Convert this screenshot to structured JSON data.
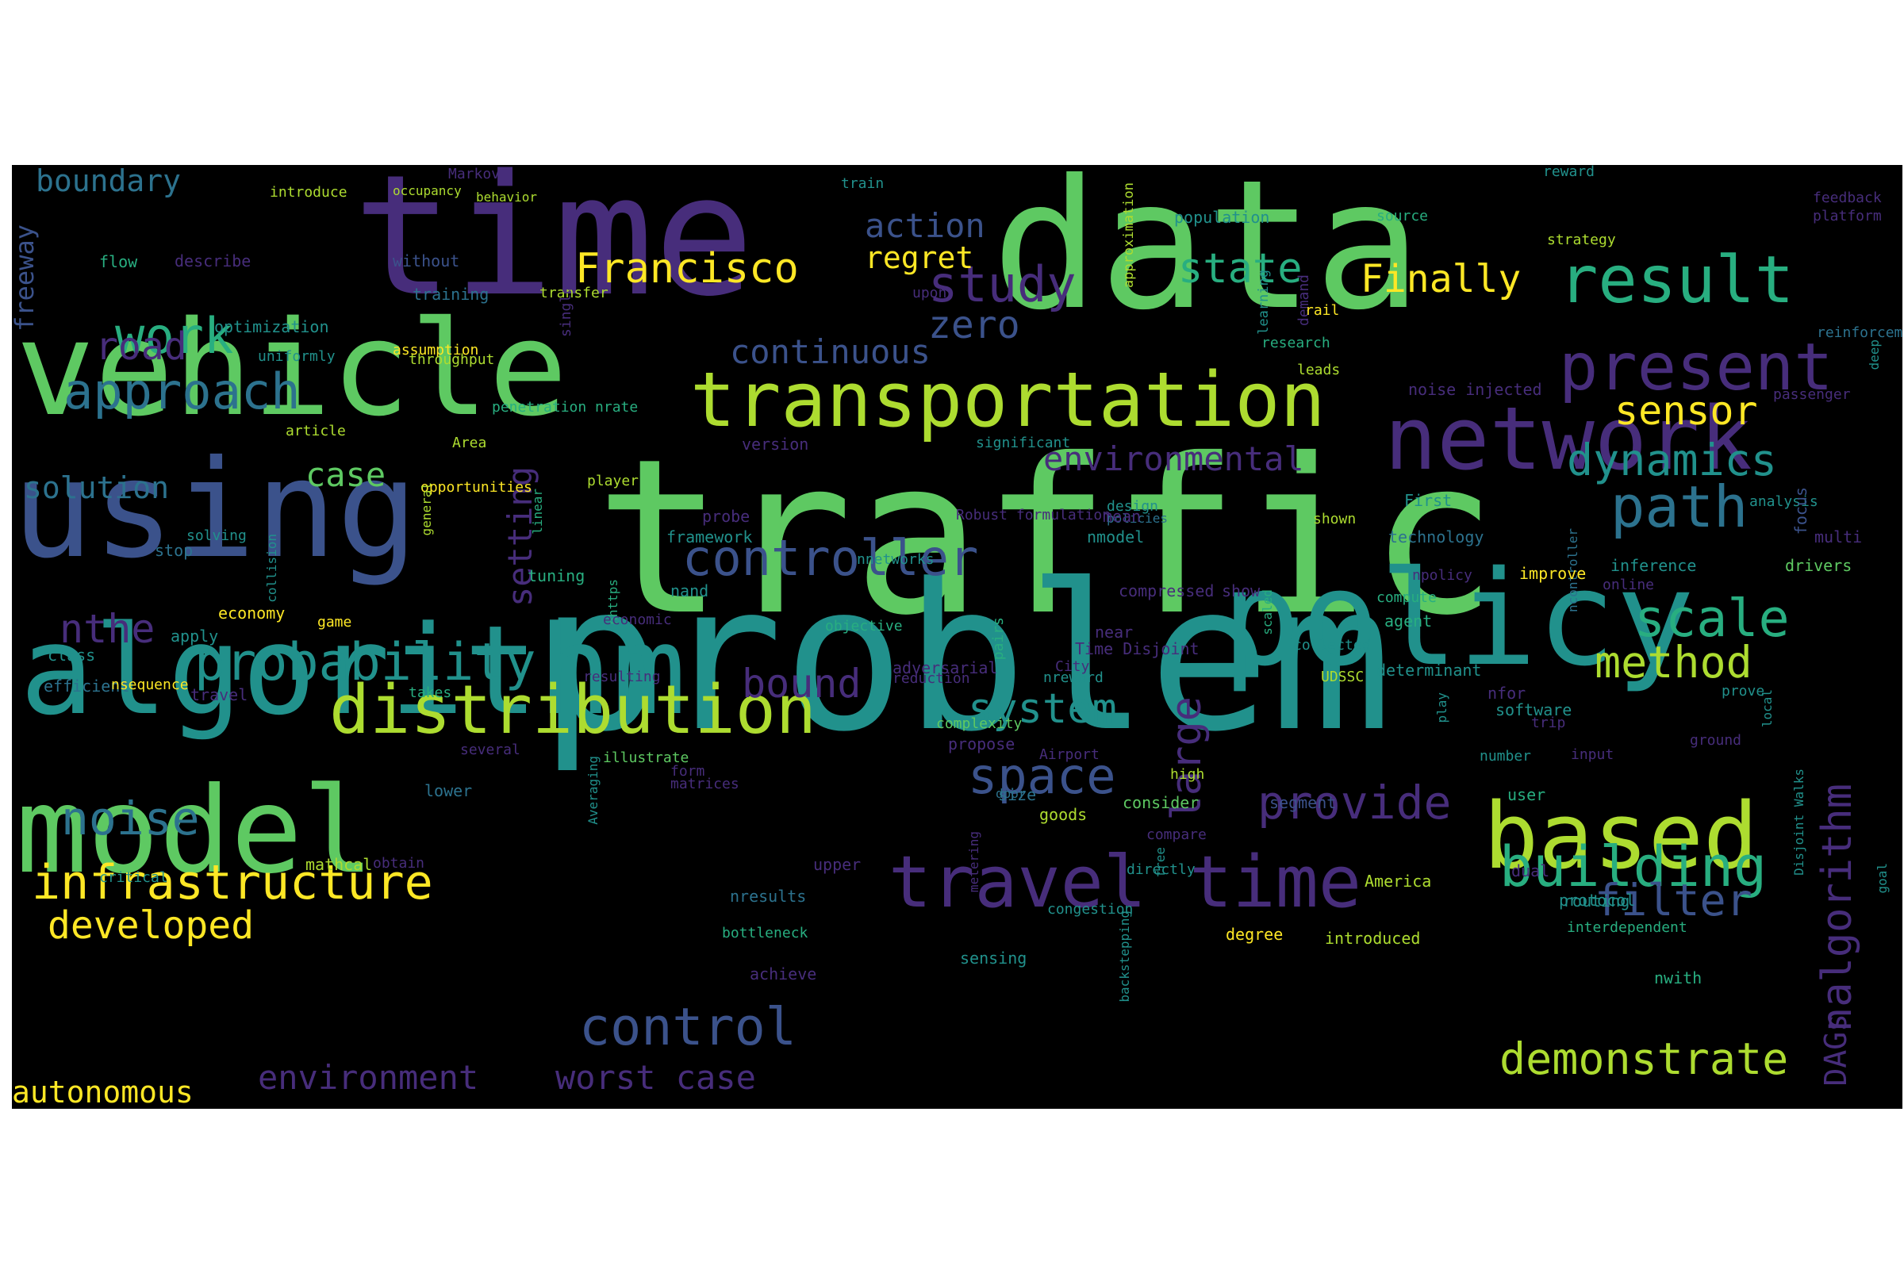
{
  "palette": [
    "#440154",
    "#472d7b",
    "#3b528b",
    "#2c728e",
    "#21918c",
    "#28ae80",
    "#5ec962",
    "#addc30",
    "#fde725"
  ],
  "words": [
    {
      "t": "time",
      "c": "#472d7b"
    },
    {
      "t": "data",
      "c": "#5ec962"
    },
    {
      "t": "traffic",
      "c": "#5ec962"
    },
    {
      "t": "problem",
      "c": "#21918c"
    },
    {
      "t": "vehicle",
      "c": "#5ec962"
    },
    {
      "t": "using",
      "c": "#3b528b"
    },
    {
      "t": "algorithm",
      "c": "#21918c"
    },
    {
      "t": "policy",
      "c": "#21918c"
    },
    {
      "t": "model",
      "c": "#5ec962"
    },
    {
      "t": "network",
      "c": "#472d7b"
    },
    {
      "t": "transportation",
      "c": "#addc30"
    },
    {
      "t": "based",
      "c": "#addc30"
    },
    {
      "t": "travel time",
      "c": "#472d7b"
    },
    {
      "t": "distribution",
      "c": "#addc30"
    },
    {
      "t": "present",
      "c": "#472d7b"
    },
    {
      "t": "result",
      "c": "#28ae80"
    },
    {
      "t": "building",
      "c": "#28ae80"
    },
    {
      "t": "infrastructure",
      "c": "#fde725"
    },
    {
      "t": "approach",
      "c": "#2c728e"
    },
    {
      "t": "work",
      "c": "#28ae80"
    },
    {
      "t": "probability",
      "c": "#21918c"
    },
    {
      "t": "controller",
      "c": "#3b528b"
    },
    {
      "t": "path",
      "c": "#2c728e"
    },
    {
      "t": "scale",
      "c": "#28ae80"
    },
    {
      "t": "control",
      "c": "#3b528b"
    },
    {
      "t": "demonstrate",
      "c": "#addc30"
    },
    {
      "t": "method",
      "c": "#addc30"
    },
    {
      "t": "study",
      "c": "#472d7b"
    },
    {
      "t": "Francisco",
      "c": "#fde725"
    },
    {
      "t": "noise",
      "c": "#2c728e"
    },
    {
      "t": "space",
      "c": "#3b528b"
    },
    {
      "t": "provide",
      "c": "#472d7b"
    },
    {
      "t": "filter",
      "c": "#3b528b"
    },
    {
      "t": "dynamics",
      "c": "#21918c"
    },
    {
      "t": "state",
      "c": "#28ae80"
    },
    {
      "t": "sensor",
      "c": "#fde725"
    },
    {
      "t": "system",
      "c": "#21918c"
    },
    {
      "t": "Finally",
      "c": "#fde725"
    },
    {
      "t": "developed",
      "c": "#fde725"
    },
    {
      "t": "environment",
      "c": "#472d7b"
    },
    {
      "t": "worst case",
      "c": "#472d7b"
    },
    {
      "t": "large",
      "c": "#472d7b"
    },
    {
      "t": "nalgorithm",
      "c": "#472d7b"
    },
    {
      "t": "autonomous",
      "c": "#fde725"
    },
    {
      "t": "environmental",
      "c": "#472d7b"
    },
    {
      "t": "continuous",
      "c": "#3b528b"
    },
    {
      "t": "action",
      "c": "#3b528b"
    },
    {
      "t": "regret",
      "c": "#fde725"
    },
    {
      "t": "zero",
      "c": "#3b528b"
    },
    {
      "t": "road",
      "c": "#472d7b"
    },
    {
      "t": "nthe",
      "c": "#472d7b"
    },
    {
      "t": "case",
      "c": "#5ec962"
    },
    {
      "t": "bound",
      "c": "#472d7b"
    },
    {
      "t": "solution",
      "c": "#2c728e"
    },
    {
      "t": "boundary",
      "c": "#2c728e"
    },
    {
      "t": "setting",
      "c": "#472d7b"
    },
    {
      "t": "DAGs",
      "c": "#472d7b"
    },
    {
      "t": "freeway",
      "c": "#3b528b"
    },
    {
      "t": "Markov",
      "c": "#472d7b"
    },
    {
      "t": "introduce",
      "c": "#addc30"
    },
    {
      "t": "occupancy",
      "c": "#addc30"
    },
    {
      "t": "behavior",
      "c": "#addc30"
    },
    {
      "t": "train",
      "c": "#21918c"
    },
    {
      "t": "flow",
      "c": "#28ae80"
    },
    {
      "t": "describe",
      "c": "#472d7b"
    },
    {
      "t": "without",
      "c": "#3b528b"
    },
    {
      "t": "training",
      "c": "#2c728e"
    },
    {
      "t": "optimization",
      "c": "#21918c"
    },
    {
      "t": "uniformly",
      "c": "#21918c"
    },
    {
      "t": "assumption",
      "c": "#fde725"
    },
    {
      "t": "throughput",
      "c": "#addc30"
    },
    {
      "t": "transfer",
      "c": "#addc30"
    },
    {
      "t": "upon",
      "c": "#472d7b"
    },
    {
      "t": "single",
      "c": "#472d7b"
    },
    {
      "t": "approximation",
      "c": "#addc30"
    },
    {
      "t": "population",
      "c": "#21918c"
    },
    {
      "t": "learning",
      "c": "#21918c"
    },
    {
      "t": "demand",
      "c": "#472d7b"
    },
    {
      "t": "rail",
      "c": "#fde725"
    },
    {
      "t": "leads",
      "c": "#addc30"
    },
    {
      "t": "research",
      "c": "#28ae80"
    },
    {
      "t": "source",
      "c": "#28ae80"
    },
    {
      "t": "reward",
      "c": "#21918c"
    },
    {
      "t": "feedback",
      "c": "#472d7b"
    },
    {
      "t": "platform",
      "c": "#472d7b"
    },
    {
      "t": "strategy",
      "c": "#addc30"
    },
    {
      "t": "reinforcement learning",
      "c": "#2c728e"
    },
    {
      "t": "deep",
      "c": "#21918c"
    },
    {
      "t": "noise injected",
      "c": "#472d7b"
    },
    {
      "t": "passenger",
      "c": "#472d7b"
    },
    {
      "t": "penetration nrate",
      "c": "#28ae80"
    },
    {
      "t": "article",
      "c": "#addc30"
    },
    {
      "t": "Area",
      "c": "#addc30"
    },
    {
      "t": "version",
      "c": "#472d7b"
    },
    {
      "t": "significant",
      "c": "#21918c"
    },
    {
      "t": "player",
      "c": "#addc30"
    },
    {
      "t": "opportunities",
      "c": "#fde725"
    },
    {
      "t": "general",
      "c": "#addc30"
    },
    {
      "t": "linear",
      "c": "#28ae80"
    },
    {
      "t": "probe",
      "c": "#472d7b"
    },
    {
      "t": "Robust formulation",
      "c": "#472d7b"
    },
    {
      "t": "First",
      "c": "#21918c"
    },
    {
      "t": "design",
      "c": "#21918c"
    },
    {
      "t": "shown",
      "c": "#addc30"
    },
    {
      "t": "policies",
      "c": "#2c728e"
    },
    {
      "t": "mean",
      "c": "#472d7b"
    },
    {
      "t": "analysis",
      "c": "#21918c"
    },
    {
      "t": "focus",
      "c": "#3b528b"
    },
    {
      "t": "multi",
      "c": "#472d7b"
    },
    {
      "t": "drivers",
      "c": "#5ec962"
    },
    {
      "t": "inference",
      "c": "#21918c"
    },
    {
      "t": "ncontroller",
      "c": "#2c728e"
    },
    {
      "t": "technology",
      "c": "#2c728e"
    },
    {
      "t": "nmodel",
      "c": "#21918c"
    },
    {
      "t": "nnetworks",
      "c": "#21918c"
    },
    {
      "t": "framework",
      "c": "#21918c"
    },
    {
      "t": "npolicy",
      "c": "#472d7b"
    },
    {
      "t": "improve",
      "c": "#fde725"
    },
    {
      "t": "online",
      "c": "#472d7b"
    },
    {
      "t": "solving",
      "c": "#21918c"
    },
    {
      "t": "collision",
      "c": "#21918c"
    },
    {
      "t": "stop",
      "c": "#2c728e"
    },
    {
      "t": "tuning",
      "c": "#28ae80"
    },
    {
      "t": "nhttps",
      "c": "#28ae80"
    },
    {
      "t": "nand",
      "c": "#21918c"
    },
    {
      "t": "compressed",
      "c": "#472d7b"
    },
    {
      "t": "show",
      "c": "#472d7b"
    },
    {
      "t": "compute",
      "c": "#28ae80"
    },
    {
      "t": "agent",
      "c": "#28ae80"
    },
    {
      "t": "economy",
      "c": "#fde725"
    },
    {
      "t": "game",
      "c": "#fde725"
    },
    {
      "t": "apply",
      "c": "#21918c"
    },
    {
      "t": "class",
      "c": "#21918c"
    },
    {
      "t": "economic",
      "c": "#472d7b"
    },
    {
      "t": "objective",
      "c": "#28ae80"
    },
    {
      "t": "pairs",
      "c": "#28ae80"
    },
    {
      "t": "near",
      "c": "#472d7b"
    },
    {
      "t": "Time Disjoint",
      "c": "#472d7b"
    },
    {
      "t": "scaled",
      "c": "#28ae80"
    },
    {
      "t": "collected",
      "c": "#21918c"
    },
    {
      "t": "adversarial",
      "c": "#472d7b"
    },
    {
      "t": "City",
      "c": "#472d7b"
    },
    {
      "t": "determinant",
      "c": "#21918c"
    },
    {
      "t": "efficient",
      "c": "#2c728e"
    },
    {
      "t": "travel",
      "c": "#472d7b"
    },
    {
      "t": "nsequence",
      "c": "#fde725"
    },
    {
      "t": "takes",
      "c": "#28ae80"
    },
    {
      "t": "resulting",
      "c": "#472d7b"
    },
    {
      "t": "reduction",
      "c": "#472d7b"
    },
    {
      "t": "nreward",
      "c": "#21918c"
    },
    {
      "t": "UDSSC",
      "c": "#addc30"
    },
    {
      "t": "nfor",
      "c": "#472d7b"
    },
    {
      "t": "prove",
      "c": "#21918c"
    },
    {
      "t": "software",
      "c": "#21918c"
    },
    {
      "t": "trip",
      "c": "#472d7b"
    },
    {
      "t": "local",
      "c": "#21918c"
    },
    {
      "t": "complexity",
      "c": "#5ec962"
    },
    {
      "t": "propose",
      "c": "#472d7b"
    },
    {
      "t": "play",
      "c": "#21918c"
    },
    {
      "t": "ground",
      "c": "#472d7b"
    },
    {
      "t": "several",
      "c": "#472d7b"
    },
    {
      "t": "illustrate",
      "c": "#5ec962"
    },
    {
      "t": "form",
      "c": "#472d7b"
    },
    {
      "t": "Airport",
      "c": "#472d7b"
    },
    {
      "t": "Averaging",
      "c": "#21918c"
    },
    {
      "t": "number",
      "c": "#21918c"
    },
    {
      "t": "input",
      "c": "#472d7b"
    },
    {
      "t": "Disjoint Walks",
      "c": "#21918c"
    },
    {
      "t": "goods",
      "c": "#addc30"
    },
    {
      "t": "lower",
      "c": "#2c728e"
    },
    {
      "t": "matrices",
      "c": "#472d7b"
    },
    {
      "t": "size",
      "c": "#2c728e"
    },
    {
      "t": "user",
      "c": "#28ae80"
    },
    {
      "t": "high",
      "c": "#addc30"
    },
    {
      "t": "door",
      "c": "#2c728e"
    },
    {
      "t": "consider",
      "c": "#5ec962"
    },
    {
      "t": "segment",
      "c": "#3b528b"
    },
    {
      "t": "dual",
      "c": "#472d7b"
    },
    {
      "t": "compare",
      "c": "#472d7b"
    },
    {
      "t": "upper",
      "c": "#472d7b"
    },
    {
      "t": "metering",
      "c": "#472d7b"
    },
    {
      "t": "routing",
      "c": "#21918c"
    },
    {
      "t": "interdependent",
      "c": "#28ae80"
    },
    {
      "t": "goal",
      "c": "#21918c"
    },
    {
      "t": "mathcal",
      "c": "#addc30"
    },
    {
      "t": "obtain",
      "c": "#472d7b"
    },
    {
      "t": "directly",
      "c": "#21918c"
    },
    {
      "t": "free",
      "c": "#21918c"
    },
    {
      "t": "America",
      "c": "#addc30"
    },
    {
      "t": "protocol",
      "c": "#21918c"
    },
    {
      "t": "critical",
      "c": "#21918c"
    },
    {
      "t": "nresults",
      "c": "#2c728e"
    },
    {
      "t": "congestion",
      "c": "#21918c"
    },
    {
      "t": "backstepping",
      "c": "#21918c"
    },
    {
      "t": "bottleneck",
      "c": "#28ae80"
    },
    {
      "t": "degree",
      "c": "#fde725"
    },
    {
      "t": "sensing",
      "c": "#21918c"
    },
    {
      "t": "introduced",
      "c": "#addc30"
    },
    {
      "t": "nwith",
      "c": "#28ae80"
    },
    {
      "t": "achieve",
      "c": "#472d7b"
    }
  ]
}
